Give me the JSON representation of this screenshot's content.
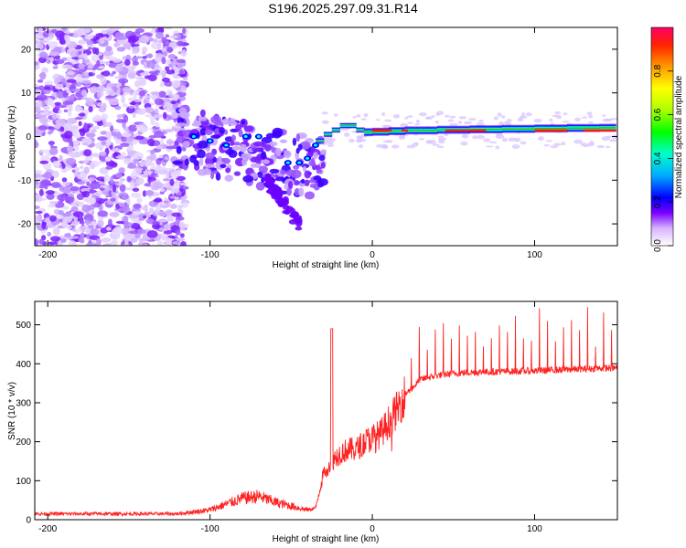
{
  "title": "S196.2025.297.09.31.R14",
  "chart_data": [
    {
      "type": "heatmap",
      "xlabel": "Height of straight line (km)",
      "ylabel": "Frequency (Hz)",
      "xlim": [
        -208,
        151
      ],
      "ylim": [
        -25,
        25
      ],
      "xticks": [
        -200,
        -100,
        0,
        100
      ],
      "yticks": [
        -20,
        -10,
        0,
        10,
        20
      ],
      "colorbar": {
        "label": "Normalized spectral amplitude",
        "range": [
          0,
          1
        ],
        "ticks": [
          "0.0",
          "0.2",
          "0.4",
          "0.6",
          "0.8"
        ]
      },
      "ridge": {
        "description_points_x": [
          -35,
          -30,
          -25,
          -20,
          -15,
          -10,
          -5,
          0,
          10,
          20,
          40,
          60,
          80,
          100,
          120,
          140,
          150
        ],
        "description_points_f": [
          -2,
          0,
          1,
          2,
          3,
          2,
          1,
          1,
          1.2,
          1.3,
          1.5,
          1.6,
          1.7,
          1.8,
          1.9,
          2,
          2
        ]
      }
    },
    {
      "type": "line",
      "xlabel": "Height of straight line (km)",
      "ylabel": "SNR (10 * v/v)",
      "xlim": [
        -208,
        151
      ],
      "ylim": [
        0,
        560
      ],
      "xticks": [
        -200,
        -100,
        0,
        100
      ],
      "yticks": [
        0,
        100,
        200,
        300,
        400,
        500
      ],
      "series": [
        {
          "name": "SNR",
          "color": "#ff2222",
          "envelope_x": [
            -208,
            -120,
            -100,
            -80,
            -70,
            -60,
            -50,
            -40,
            -35,
            -30,
            -25,
            -20,
            -15,
            -10,
            -5,
            0,
            5,
            10,
            15,
            20,
            25,
            30,
            40,
            50,
            60,
            80,
            100,
            120,
            140,
            151
          ],
          "envelope_y": [
            15,
            15,
            25,
            55,
            60,
            45,
            35,
            25,
            30,
            120,
            150,
            170,
            180,
            180,
            200,
            210,
            220,
            250,
            280,
            320,
            340,
            360,
            370,
            375,
            378,
            380,
            382,
            385,
            388,
            390
          ]
        }
      ]
    }
  ]
}
